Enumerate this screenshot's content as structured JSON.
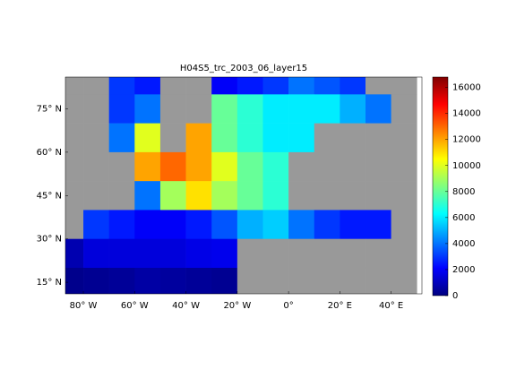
{
  "chart_data": {
    "type": "map",
    "title": "H04S5_trc_2003_06_layer15",
    "xlim": [
      -87,
      52
    ],
    "ylim": [
      11,
      86
    ],
    "xticks": [
      {
        "value": -80,
        "label": "80° W"
      },
      {
        "value": -60,
        "label": "60° W"
      },
      {
        "value": -40,
        "label": "40° W"
      },
      {
        "value": -20,
        "label": "20° W"
      },
      {
        "value": 0,
        "label": "0°"
      },
      {
        "value": 20,
        "label": "20° E"
      },
      {
        "value": 40,
        "label": "40° E"
      }
    ],
    "yticks": [
      {
        "value": 15,
        "label": "15° N"
      },
      {
        "value": 30,
        "label": "30° N"
      },
      {
        "value": 45,
        "label": "45° N"
      },
      {
        "value": 60,
        "label": "60° N"
      },
      {
        "value": 75,
        "label": "75° N"
      }
    ],
    "land_color": "#999999",
    "lon_edges": [
      -90,
      -80,
      -70,
      -60,
      -50,
      -40,
      -30,
      -20,
      -10,
      0,
      10,
      20,
      30,
      40,
      50
    ],
    "lat_edges": [
      90,
      80,
      70,
      60,
      50,
      40,
      30,
      20,
      10
    ],
    "field": [
      [
        null,
        null,
        3000,
        2500,
        null,
        null,
        2000,
        2500,
        3000,
        4000,
        3500,
        3000,
        null,
        null
      ],
      [
        null,
        null,
        3000,
        4000,
        null,
        null,
        8000,
        7000,
        6000,
        6000,
        6000,
        5000,
        4000,
        null
      ],
      [
        null,
        null,
        4000,
        10000,
        null,
        12000,
        8000,
        7000,
        6000,
        6000,
        null,
        null,
        null,
        null
      ],
      [
        null,
        null,
        null,
        12000,
        13000,
        12000,
        10000,
        8000,
        7000,
        null,
        null,
        null,
        null,
        null
      ],
      [
        null,
        null,
        null,
        4000,
        9000,
        11000,
        9000,
        8000,
        7000,
        null,
        null,
        null,
        null,
        null
      ],
      [
        null,
        3000,
        2500,
        2000,
        2000,
        2500,
        3500,
        5000,
        5500,
        4000,
        3000,
        2500,
        2500,
        null
      ],
      [
        800,
        1500,
        1500,
        1500,
        1500,
        1700,
        1800,
        null,
        null,
        null,
        null,
        null,
        null,
        null
      ],
      [
        200,
        300,
        400,
        600,
        500,
        400,
        300,
        null,
        null,
        null,
        null,
        null,
        null,
        null
      ]
    ],
    "colorbar": {
      "clim": [
        0,
        16800
      ],
      "ticks": [
        0,
        2000,
        4000,
        6000,
        8000,
        10000,
        12000,
        14000,
        16000
      ]
    }
  }
}
